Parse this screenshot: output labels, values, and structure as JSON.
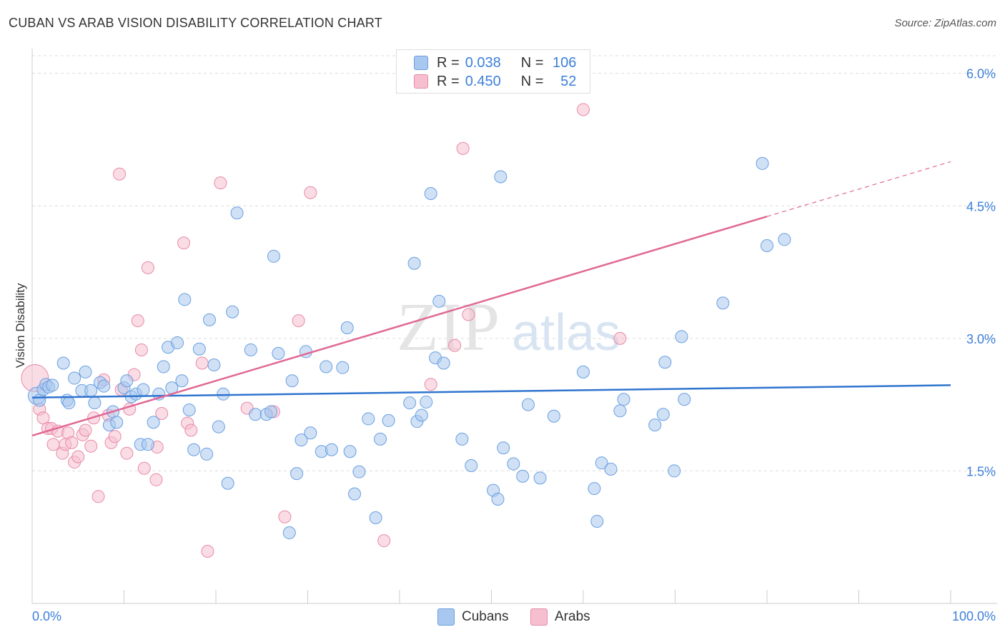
{
  "title": "CUBAN VS ARAB VISION DISABILITY CORRELATION CHART",
  "source": "Source: ZipAtlas.com",
  "watermark": {
    "zip": "ZIP",
    "atlas": "atlas"
  },
  "legend": {
    "rows": [
      {
        "r_label": "R =",
        "r_value": "0.038",
        "n_label": "N =",
        "n_value": "106"
      },
      {
        "r_label": "R =",
        "r_value": "0.450",
        "n_label": "N =",
        "n_value": "52"
      }
    ]
  },
  "bottom_legend": {
    "items": [
      "Cubans",
      "Arabs"
    ]
  },
  "colors": {
    "cubans_fill": "#a9c8ef",
    "cubans_stroke": "#6a9fe0",
    "cubans_line": "#2f74cf",
    "arabs_fill": "#f6bfd0",
    "arabs_stroke": "#e88aa8",
    "arabs_line": "#e06894",
    "tick_label": "#3d7fd9",
    "grid": "#dcdcdc"
  },
  "chart_data": {
    "type": "scatter",
    "title": "CUBAN VS ARAB VISION DISABILITY CORRELATION CHART",
    "xlabel": "",
    "ylabel": "Vision Disability",
    "xlim": [
      0,
      100
    ],
    "ylim": [
      0,
      6.2
    ],
    "x_tick_labels": [
      "0.0%",
      "100.0%"
    ],
    "y_ticks": [
      1.5,
      3.0,
      4.5,
      6.0
    ],
    "y_tick_labels": [
      "1.5%",
      "3.0%",
      "4.5%",
      "6.0%"
    ],
    "grid": "horizontal dashed",
    "legend_placement": "top-center",
    "series": [
      {
        "name": "Cubans",
        "r": 0.038,
        "n": 106,
        "trend": {
          "x": [
            0,
            100
          ],
          "y": [
            2.33,
            2.47
          ]
        },
        "points": [
          [
            0.5,
            2.35
          ],
          [
            0.8,
            2.3
          ],
          [
            1.2,
            2.42
          ],
          [
            1.5,
            2.48
          ],
          [
            1.8,
            2.45
          ],
          [
            2.2,
            2.47
          ],
          [
            3.4,
            2.72
          ],
          [
            3.8,
            2.3
          ],
          [
            4.0,
            2.27
          ],
          [
            4.6,
            2.55
          ],
          [
            5.4,
            2.41
          ],
          [
            5.8,
            2.62
          ],
          [
            6.4,
            2.41
          ],
          [
            6.8,
            2.27
          ],
          [
            7.4,
            2.5
          ],
          [
            7.8,
            2.46
          ],
          [
            8.4,
            2.02
          ],
          [
            8.8,
            2.17
          ],
          [
            9.2,
            2.05
          ],
          [
            10.0,
            2.44
          ],
          [
            10.3,
            2.52
          ],
          [
            10.8,
            2.34
          ],
          [
            11.3,
            2.37
          ],
          [
            11.8,
            1.8
          ],
          [
            12.1,
            2.42
          ],
          [
            12.6,
            1.8
          ],
          [
            13.2,
            2.05
          ],
          [
            13.8,
            2.37
          ],
          [
            14.3,
            2.68
          ],
          [
            14.8,
            2.9
          ],
          [
            15.2,
            2.44
          ],
          [
            15.8,
            2.95
          ],
          [
            16.3,
            2.52
          ],
          [
            16.6,
            3.44
          ],
          [
            17.1,
            2.19
          ],
          [
            17.6,
            1.74
          ],
          [
            18.2,
            2.88
          ],
          [
            19.0,
            1.69
          ],
          [
            19.3,
            3.21
          ],
          [
            19.8,
            2.7
          ],
          [
            20.3,
            2.0
          ],
          [
            20.8,
            2.37
          ],
          [
            21.3,
            1.36
          ],
          [
            21.8,
            3.3
          ],
          [
            22.3,
            4.42
          ],
          [
            23.8,
            2.87
          ],
          [
            24.3,
            2.14
          ],
          [
            25.5,
            2.14
          ],
          [
            26.0,
            2.17
          ],
          [
            26.3,
            3.93
          ],
          [
            26.8,
            2.83
          ],
          [
            28.0,
            0.8
          ],
          [
            28.3,
            2.52
          ],
          [
            28.8,
            1.47
          ],
          [
            29.3,
            1.85
          ],
          [
            29.8,
            2.85
          ],
          [
            30.3,
            1.93
          ],
          [
            31.5,
            1.72
          ],
          [
            32.0,
            2.68
          ],
          [
            32.6,
            1.74
          ],
          [
            33.8,
            2.67
          ],
          [
            34.3,
            3.12
          ],
          [
            34.6,
            1.72
          ],
          [
            35.1,
            1.24
          ],
          [
            35.6,
            1.49
          ],
          [
            36.6,
            2.09
          ],
          [
            37.4,
            0.97
          ],
          [
            37.9,
            1.86
          ],
          [
            38.8,
            2.07
          ],
          [
            41.1,
            2.27
          ],
          [
            41.6,
            3.85
          ],
          [
            41.9,
            2.06
          ],
          [
            42.4,
            2.13
          ],
          [
            42.9,
            2.28
          ],
          [
            43.4,
            4.64
          ],
          [
            43.9,
            2.78
          ],
          [
            44.3,
            3.42
          ],
          [
            44.8,
            2.72
          ],
          [
            46.8,
            1.86
          ],
          [
            47.8,
            1.56
          ],
          [
            50.2,
            1.28
          ],
          [
            50.7,
            1.18
          ],
          [
            51.0,
            4.83
          ],
          [
            51.3,
            1.76
          ],
          [
            52.4,
            1.58
          ],
          [
            53.4,
            1.44
          ],
          [
            54.0,
            2.25
          ],
          [
            55.3,
            1.42
          ],
          [
            56.8,
            2.12
          ],
          [
            60.0,
            2.62
          ],
          [
            61.2,
            1.3
          ],
          [
            61.5,
            0.93
          ],
          [
            62.0,
            1.59
          ],
          [
            63.0,
            1.52
          ],
          [
            64.0,
            2.18
          ],
          [
            64.4,
            2.31
          ],
          [
            67.8,
            2.02
          ],
          [
            68.7,
            2.14
          ],
          [
            68.9,
            2.73
          ],
          [
            69.9,
            1.5
          ],
          [
            70.7,
            3.02
          ],
          [
            71.0,
            2.31
          ],
          [
            75.2,
            3.4
          ],
          [
            79.5,
            4.98
          ],
          [
            80.0,
            4.05
          ],
          [
            81.9,
            4.12
          ]
        ]
      },
      {
        "name": "Arabs",
        "r": 0.45,
        "n": 52,
        "trend": {
          "x": [
            0,
            80
          ],
          "y": [
            1.9,
            4.38
          ]
        },
        "trend_dashed": {
          "x": [
            80,
            100
          ],
          "y": [
            4.38,
            5.0
          ]
        },
        "points": [
          [
            0.3,
            2.55
          ],
          [
            0.8,
            2.2
          ],
          [
            1.2,
            2.1
          ],
          [
            1.7,
            1.98
          ],
          [
            2.1,
            1.98
          ],
          [
            2.3,
            1.8
          ],
          [
            2.8,
            1.95
          ],
          [
            3.3,
            1.7
          ],
          [
            3.6,
            1.8
          ],
          [
            3.9,
            1.93
          ],
          [
            4.3,
            1.82
          ],
          [
            4.6,
            1.6
          ],
          [
            5.0,
            1.66
          ],
          [
            5.5,
            1.91
          ],
          [
            5.8,
            1.96
          ],
          [
            6.4,
            1.78
          ],
          [
            6.7,
            2.1
          ],
          [
            7.2,
            1.21
          ],
          [
            7.8,
            2.53
          ],
          [
            8.3,
            2.13
          ],
          [
            8.6,
            1.82
          ],
          [
            9.0,
            1.89
          ],
          [
            9.5,
            4.86
          ],
          [
            9.7,
            2.42
          ],
          [
            10.3,
            1.7
          ],
          [
            10.6,
            2.2
          ],
          [
            11.1,
            2.59
          ],
          [
            11.5,
            3.2
          ],
          [
            11.9,
            2.87
          ],
          [
            12.2,
            1.53
          ],
          [
            12.6,
            3.8
          ],
          [
            13.5,
            1.4
          ],
          [
            13.6,
            1.77
          ],
          [
            14.1,
            2.15
          ],
          [
            16.5,
            4.08
          ],
          [
            16.9,
            2.04
          ],
          [
            17.3,
            1.96
          ],
          [
            18.5,
            2.72
          ],
          [
            19.1,
            0.59
          ],
          [
            20.5,
            4.76
          ],
          [
            23.4,
            2.21
          ],
          [
            26.3,
            2.17
          ],
          [
            27.5,
            0.98
          ],
          [
            29.0,
            3.2
          ],
          [
            30.3,
            4.65
          ],
          [
            38.3,
            0.71
          ],
          [
            43.4,
            2.48
          ],
          [
            46.0,
            2.92
          ],
          [
            46.9,
            5.15
          ],
          [
            47.5,
            3.27
          ],
          [
            60.0,
            5.59
          ],
          [
            64.0,
            3.0
          ]
        ]
      }
    ]
  }
}
